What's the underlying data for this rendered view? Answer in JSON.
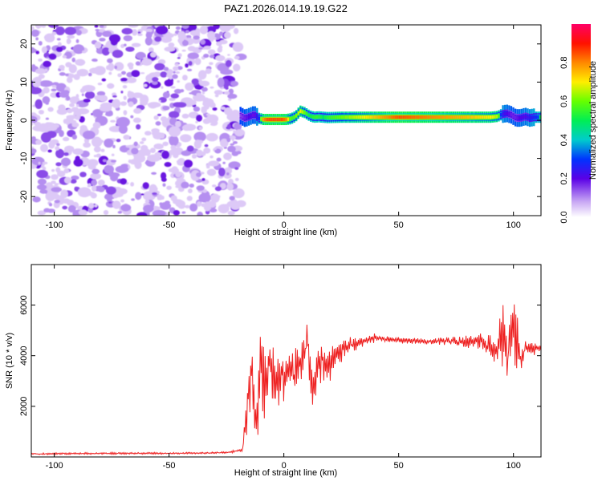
{
  "title": "PAZ1.2026.014.19.19.G22",
  "chart_data": [
    {
      "type": "heatmap",
      "name": "spectrogram",
      "xlabel": "Height of straight line (km)",
      "ylabel": "Frequency (Hz)",
      "xlim": [
        -110,
        112
      ],
      "ylim": [
        -25,
        25
      ],
      "xticks": [
        -100,
        -50,
        0,
        50,
        100
      ],
      "yticks": [
        -20,
        -10,
        0,
        10,
        20
      ],
      "noise_region_x": [
        -110,
        -20
      ],
      "signal_track": {
        "x": [
          -19,
          -17,
          -15,
          -13,
          -11,
          -9,
          -7,
          -5,
          -3,
          -1,
          1,
          3,
          5,
          7,
          9,
          11,
          13,
          15,
          17,
          19,
          25,
          35,
          50,
          65,
          80,
          90,
          93,
          95,
          97,
          99,
          101,
          103,
          105,
          107,
          109,
          111
        ],
        "frequency": [
          1.2,
          0.5,
          1.0,
          1.5,
          0.5,
          0.2,
          0.2,
          0.2,
          0.2,
          0.2,
          0.2,
          0.4,
          1.0,
          2.4,
          2.0,
          1.2,
          0.8,
          0.9,
          0.8,
          0.7,
          0.8,
          0.8,
          0.8,
          0.8,
          0.8,
          0.8,
          1.0,
          1.6,
          1.8,
          1.4,
          0.6,
          0.6,
          1.0,
          0.6,
          0.8,
          0.8
        ],
        "amplitude": [
          0.25,
          0.3,
          0.35,
          0.3,
          0.45,
          0.8,
          0.85,
          0.85,
          0.85,
          0.85,
          0.8,
          0.55,
          0.6,
          0.7,
          0.6,
          0.5,
          0.55,
          0.55,
          0.5,
          0.55,
          0.6,
          0.7,
          0.85,
          0.8,
          0.75,
          0.7,
          0.65,
          0.4,
          0.35,
          0.3,
          0.3,
          0.35,
          0.35,
          0.4,
          0.45,
          0.5
        ]
      },
      "colorbar": {
        "label": "Normalized spectral amplitude",
        "range": [
          0,
          1
        ],
        "ticks": [
          "0.0",
          "0.2",
          "0.4",
          "0.6",
          "0.8"
        ]
      }
    },
    {
      "type": "line",
      "name": "snr",
      "xlabel": "Height of straight line (km)",
      "ylabel": "SNR (10 * v/v)",
      "xlim": [
        -110,
        112
      ],
      "ylim": [
        0,
        7600
      ],
      "xticks": [
        -100,
        -50,
        0,
        50,
        100
      ],
      "yticks": [
        2000,
        4000,
        6000
      ],
      "color": "#ee2222",
      "series": [
        {
          "name": "SNR",
          "x": [
            -110,
            -100,
            -80,
            -60,
            -40,
            -25,
            -20,
            -18,
            -16,
            -14,
            -12,
            -10,
            -8,
            -6,
            -4,
            -2,
            0,
            2,
            4,
            6,
            8,
            10,
            12,
            15,
            20,
            25,
            30,
            35,
            40,
            45,
            50,
            60,
            70,
            75,
            80,
            85,
            90,
            93,
            95,
            97,
            99,
            101,
            103,
            105,
            108,
            112
          ],
          "values": [
            120,
            130,
            140,
            140,
            150,
            170,
            250,
            300,
            1800,
            3600,
            1500,
            3700,
            2600,
            3800,
            3000,
            3400,
            3100,
            3500,
            3300,
            3700,
            3900,
            4700,
            2600,
            3900,
            3600,
            4300,
            4500,
            4600,
            4700,
            4650,
            4600,
            4550,
            4600,
            4550,
            4500,
            4600,
            4400,
            4200,
            4800,
            3600,
            5200,
            4300,
            3800,
            4300,
            4250,
            4300
          ],
          "noise": [
            50,
            60,
            60,
            60,
            60,
            60,
            80,
            150,
            1500,
            2500,
            2200,
            2500,
            2500,
            2000,
            2000,
            1800,
            1400,
            1400,
            1500,
            1500,
            1500,
            1700,
            1500,
            1500,
            1200,
            800,
            500,
            350,
            250,
            200,
            200,
            200,
            250,
            300,
            450,
            550,
            700,
            900,
            2500,
            3000,
            3200,
            2800,
            1000,
            500,
            400,
            350
          ]
        }
      ]
    }
  ]
}
